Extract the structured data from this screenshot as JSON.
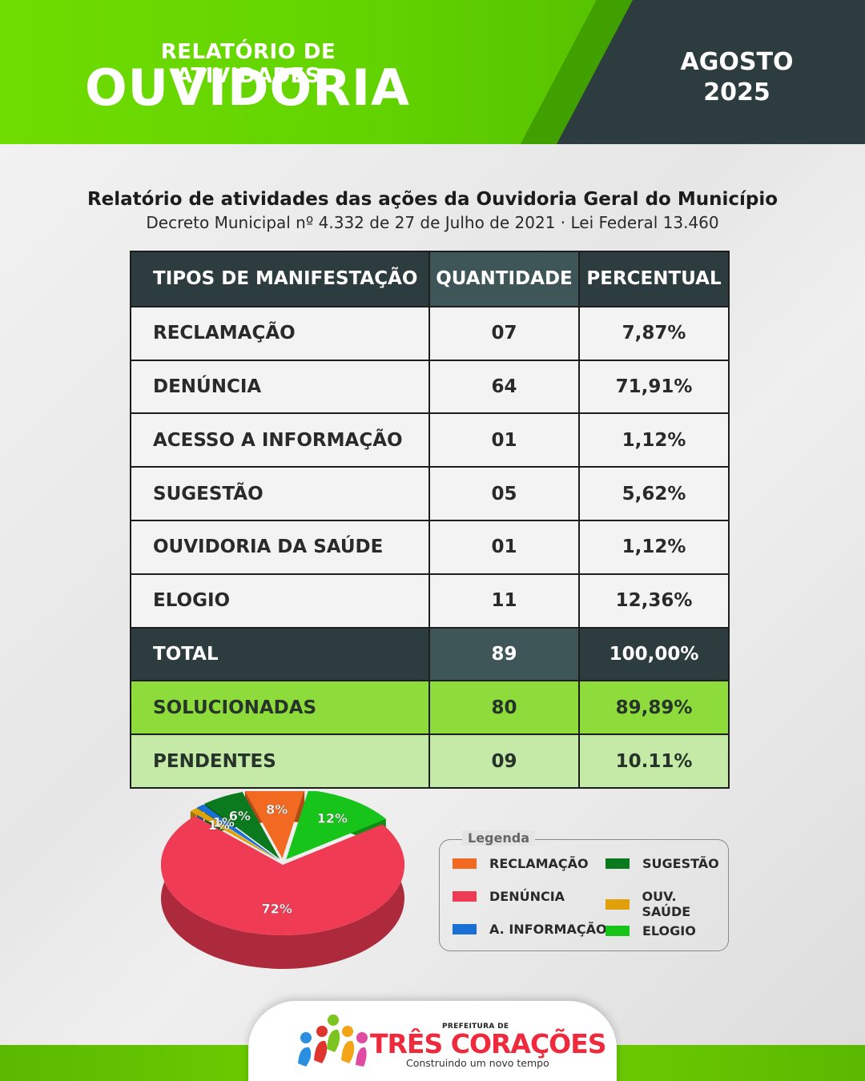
{
  "header": {
    "subtitle": "RELATÓRIO DE ATIVIDADES",
    "title": "OUVIDORIA",
    "month": "AGOSTO",
    "year": "2025"
  },
  "report": {
    "title": "Relatório de atividades das ações da Ouvidoria Geral do Município",
    "subtitle": "Decreto Municipal nº 4.332 de 27 de Julho de 2021 · Lei Federal 13.460"
  },
  "table": {
    "columns": [
      "TIPOS DE MANIFESTAÇÃO",
      "QUANTIDADE",
      "PERCENTUAL"
    ],
    "rows": [
      [
        "RECLAMAÇÃO",
        "07",
        "7,87%"
      ],
      [
        "DENÚNCIA",
        "64",
        "71,91%"
      ],
      [
        "ACESSO A INFORMAÇÃO",
        "01",
        "1,12%"
      ],
      [
        "SUGESTÃO",
        "05",
        "5,62%"
      ],
      [
        "OUVIDORIA DA SAÚDE",
        "01",
        "1,12%"
      ],
      [
        "ELOGIO",
        "11",
        "12,36%"
      ]
    ],
    "total": [
      "TOTAL",
      "89",
      "100,00%"
    ],
    "solved": [
      "SOLUCIONADAS",
      "80",
      "89,89%"
    ],
    "pending": [
      "PENDENTES",
      "09",
      "10.11%"
    ]
  },
  "chart_data": {
    "type": "pie",
    "slices": [
      {
        "name": "RECLAMAÇÃO",
        "value": 7.87,
        "label": "8%",
        "color": "#f26a21"
      },
      {
        "name": "DENÚNCIA",
        "value": 71.91,
        "label": "72%",
        "color": "#ef3b54"
      },
      {
        "name": "A. INFORMAÇÃO",
        "value": 1.12,
        "label": "1%",
        "color": "#1a6fd6"
      },
      {
        "name": "SUGESTÃO",
        "value": 5.62,
        "label": "6%",
        "color": "#0b7a1f"
      },
      {
        "name": "OUV. SAÚDE",
        "value": 1.12,
        "label": "1%",
        "color": "#e0a10a"
      },
      {
        "name": "ELOGIO",
        "value": 12.36,
        "label": "12%",
        "color": "#17c41a"
      }
    ],
    "legend_title": "Legenda",
    "legend_placement": "right"
  },
  "footer": {
    "prefix": "PREFEITURA DE",
    "name": "TRÊS CORAÇÕES",
    "tagline": "Construindo um novo tempo"
  }
}
